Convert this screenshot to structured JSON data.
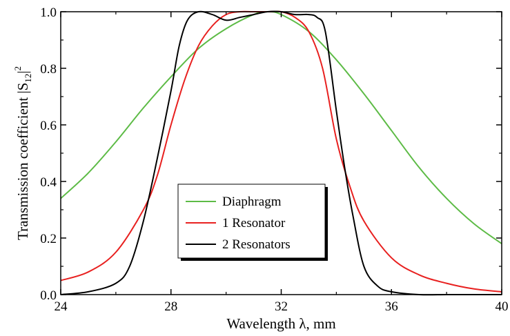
{
  "chart_data": {
    "type": "line",
    "xlabel": "Wavelength λ, mm",
    "ylabel": "Transmission coefficient |S12|2",
    "ylabel_parts": {
      "main": "Transmission coefficient |S",
      "sub": "12",
      "close": "|",
      "sup": "2"
    },
    "xlim": [
      24,
      40
    ],
    "ylim": [
      0.0,
      1.0
    ],
    "xticks": [
      24,
      28,
      32,
      36,
      40
    ],
    "xtick_labels": [
      "24",
      "28",
      "32",
      "36",
      "40"
    ],
    "yticks": [
      0.0,
      0.2,
      0.4,
      0.6,
      0.8,
      1.0
    ],
    "ytick_labels": [
      "0.0",
      "0.2",
      "0.4",
      "0.6",
      "0.8",
      "1.0"
    ],
    "grid": false,
    "legend_position": "bottom-center",
    "series": [
      {
        "name": "Diaphragm",
        "color": "#5dbb46",
        "x": [
          24,
          25,
          26,
          27,
          28,
          29,
          30,
          31,
          31.5,
          32,
          33,
          34,
          35,
          36,
          37,
          38,
          39,
          40
        ],
        "y": [
          0.34,
          0.43,
          0.54,
          0.66,
          0.77,
          0.87,
          0.94,
          0.99,
          1.0,
          0.99,
          0.93,
          0.83,
          0.71,
          0.58,
          0.45,
          0.34,
          0.25,
          0.18
        ]
      },
      {
        "name": "1 Resonator",
        "color": "#e8201f",
        "x": [
          24,
          25,
          26,
          27,
          27.5,
          28,
          28.5,
          29,
          29.5,
          30,
          30.5,
          31,
          31.5,
          32,
          32.5,
          33,
          33.5,
          34,
          34.5,
          35,
          36,
          37,
          38,
          39,
          40
        ],
        "y": [
          0.05,
          0.08,
          0.15,
          0.3,
          0.42,
          0.6,
          0.76,
          0.88,
          0.95,
          0.99,
          1.0,
          1.0,
          1.0,
          1.0,
          0.98,
          0.93,
          0.8,
          0.55,
          0.38,
          0.26,
          0.13,
          0.07,
          0.04,
          0.02,
          0.01
        ]
      },
      {
        "name": "2 Resonators",
        "color": "#000000",
        "x": [
          24,
          25,
          26,
          26.5,
          27,
          27.5,
          28,
          28.3,
          28.6,
          29,
          29.5,
          30,
          30.5,
          31,
          31.5,
          32,
          32.5,
          33,
          33.3,
          33.6,
          34,
          34.3,
          34.6,
          35,
          35.5,
          36,
          37,
          38,
          39,
          40
        ],
        "y": [
          0.0,
          0.01,
          0.04,
          0.1,
          0.26,
          0.48,
          0.72,
          0.88,
          0.97,
          1.0,
          0.99,
          0.97,
          0.98,
          0.99,
          1.0,
          1.0,
          0.99,
          0.99,
          0.98,
          0.93,
          0.65,
          0.45,
          0.28,
          0.1,
          0.03,
          0.01,
          0.0,
          0.0,
          0.0,
          0.0
        ]
      }
    ]
  }
}
